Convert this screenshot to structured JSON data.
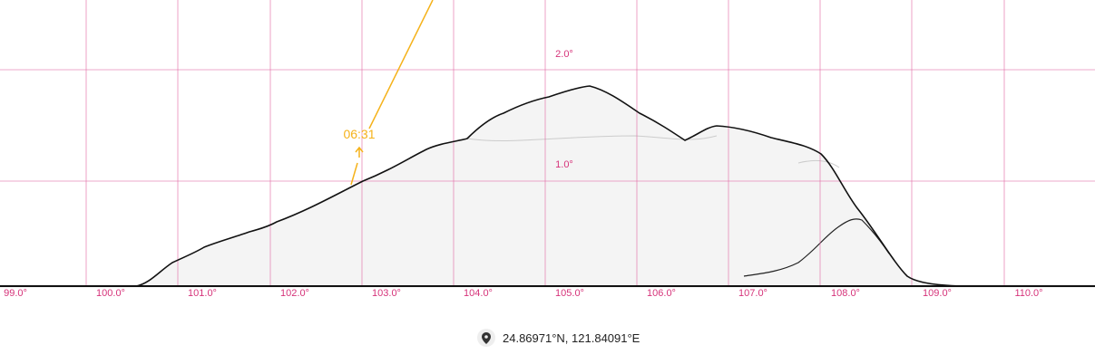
{
  "x_ticks": [
    "99.0°",
    "100.0°",
    "101.0°",
    "102.0°",
    "103.0°",
    "104.0°",
    "105.0°",
    "106.0°",
    "107.0°",
    "108.0°",
    "109.0°",
    "110.0°"
  ],
  "y_ticks": [
    "1.0°",
    "2.0°"
  ],
  "sun": {
    "time_label": "06:31",
    "path_color": "#f5b21a"
  },
  "location": {
    "coordinates": "24.86971°N, 121.84091°E",
    "icon": "map-pin-icon"
  },
  "colors": {
    "grid": "#e36fa8",
    "tick_text": "#d6337a",
    "skyline": "#111111",
    "terrain_fill": "#f4f4f4"
  }
}
